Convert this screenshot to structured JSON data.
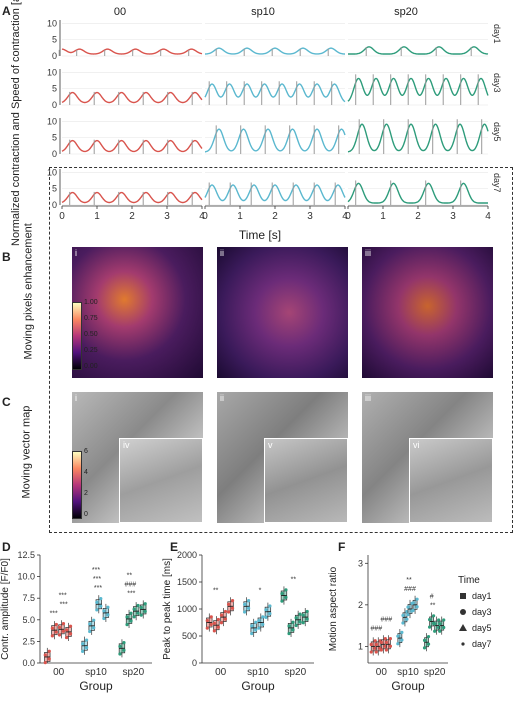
{
  "panel_labels": {
    "A": "A",
    "B": "B",
    "C": "C",
    "D": "D",
    "E": "E",
    "F": "F"
  },
  "groups": [
    "00",
    "sp10",
    "sp20"
  ],
  "days": [
    "day1",
    "day3",
    "day5",
    "day7"
  ],
  "group_colors": {
    "00": "#d9544d",
    "sp10": "#5bb8cf",
    "sp20": "#2e9c7b"
  },
  "panelA": {
    "ylabel": "Normalized contraction and Speed of contraction [a.u.]",
    "xlabel": "Time [s]",
    "x_ticks": [
      "0",
      "1",
      "2",
      "3",
      "4"
    ],
    "y_ticks": [
      "0",
      "5",
      "10"
    ]
  },
  "panelB": {
    "ylabel": "Moving pixels enhancement",
    "roman": [
      "i",
      "ii",
      "iii"
    ],
    "colorbar_ticks": [
      "1.00",
      "0.75",
      "0.50",
      "0.25",
      "0.00"
    ]
  },
  "panelC": {
    "ylabel": "Moving vector map",
    "roman": [
      "i",
      "ii",
      "iii"
    ],
    "inset_roman": [
      "iv",
      "v",
      "vi"
    ],
    "colorbar_ticks": [
      "6",
      "4",
      "2",
      "0"
    ]
  },
  "legend": {
    "title": "Time",
    "items": [
      "day1",
      "day3",
      "day5",
      "day7"
    ]
  },
  "chart_data": [
    {
      "type": "line",
      "title": "",
      "xlabel": "Time [s]",
      "ylabel": "Normalized contraction and Speed of contraction [a.u.]",
      "xlim": [
        0,
        4
      ],
      "ylim": [
        0,
        11
      ],
      "panels": [
        {
          "group": "00",
          "day": "day1",
          "peaks": [
            0.0,
            0.5,
            1.3,
            2.1,
            2.9,
            3.7
          ],
          "amplitude": 1.5
        },
        {
          "group": "sp10",
          "day": "day1",
          "peaks": [
            0.4,
            1.2,
            2.0,
            2.8,
            3.6
          ],
          "amplitude": 1.8
        },
        {
          "group": "sp20",
          "day": "day1",
          "peaks": [
            0.6,
            1.6,
            2.6,
            3.6
          ],
          "amplitude": 2.2
        },
        {
          "group": "00",
          "day": "day3",
          "peaks": [
            0.3,
            1.0,
            1.7,
            2.4,
            3.1,
            3.8
          ],
          "amplitude": 3.2
        },
        {
          "group": "sp10",
          "day": "day3",
          "peaks": [
            0.2,
            0.7,
            1.2,
            1.7,
            2.2,
            2.7,
            3.2,
            3.7
          ],
          "amplitude": 5.8
        },
        {
          "group": "sp20",
          "day": "day3",
          "peaks": [
            0.3,
            0.8,
            1.3,
            1.8,
            2.3,
            2.8,
            3.3,
            3.8
          ],
          "amplitude": 7.5
        },
        {
          "group": "00",
          "day": "day5",
          "peaks": [
            0.3,
            1.0,
            1.7,
            2.4,
            3.1,
            3.8
          ],
          "amplitude": 3.5
        },
        {
          "group": "sp10",
          "day": "day5",
          "peaks": [
            0.4,
            1.1,
            1.8,
            2.5,
            3.2,
            3.9
          ],
          "amplitude": 7.0
        },
        {
          "group": "sp20",
          "day": "day5",
          "peaks": [
            0.4,
            1.1,
            1.8,
            2.5,
            3.2,
            3.9
          ],
          "amplitude": 8.5
        },
        {
          "group": "00",
          "day": "day7",
          "peaks": [
            0.3,
            1.0,
            1.7,
            2.4,
            3.1,
            3.8
          ],
          "amplitude": 3.2
        },
        {
          "group": "sp10",
          "day": "day7",
          "peaks": [
            0.2,
            0.8,
            1.4,
            2.0,
            2.6,
            3.2,
            3.8
          ],
          "amplitude": 5.5
        },
        {
          "group": "sp20",
          "day": "day7",
          "peaks": [
            0.3,
            1.3,
            2.3,
            3.3
          ],
          "amplitude": 6.0
        }
      ]
    },
    {
      "type": "box",
      "title": "",
      "xlabel": "Group",
      "ylabel": "Contr. amplitude [F/F0]",
      "ylim": [
        0,
        12.5
      ],
      "y_ticks": [
        0.0,
        2.5,
        5.0,
        7.5,
        10.0,
        12.5
      ],
      "categories": [
        "00",
        "sp10",
        "sp20"
      ],
      "series": [
        {
          "name": "day1",
          "values": [
            0.7,
            2.0,
            1.7
          ]
        },
        {
          "name": "day3",
          "values": [
            3.8,
            4.3,
            5.1
          ]
        },
        {
          "name": "day5",
          "values": [
            3.9,
            6.8,
            6.0
          ]
        },
        {
          "name": "day7",
          "values": [
            3.6,
            5.8,
            6.2
          ]
        }
      ],
      "annotations": [
        "***",
        "***",
        "***",
        "***",
        "***",
        "###",
        "***",
        "***",
        "**"
      ]
    },
    {
      "type": "box",
      "title": "",
      "xlabel": "Group",
      "ylabel": "Peak to peak time [ms]",
      "ylim": [
        0,
        2000
      ],
      "y_ticks": [
        0,
        500,
        1000,
        1500,
        2000
      ],
      "categories": [
        "00",
        "sp10",
        "sp20"
      ],
      "series": [
        {
          "name": "day1",
          "values": [
            750,
            1050,
            1250
          ]
        },
        {
          "name": "day3",
          "values": [
            700,
            650,
            650
          ]
        },
        {
          "name": "day5",
          "values": [
            850,
            750,
            800
          ]
        },
        {
          "name": "day7",
          "values": [
            1050,
            950,
            850
          ]
        }
      ],
      "annotations": [
        "**",
        "*",
        "**"
      ]
    },
    {
      "type": "box",
      "title": "",
      "xlabel": "Group",
      "ylabel": "Motion aspect ratio",
      "ylim": [
        0.6,
        3.2
      ],
      "y_ticks": [
        1,
        2,
        3
      ],
      "categories": [
        "00",
        "sp10",
        "sp20"
      ],
      "series": [
        {
          "name": "day1",
          "values": [
            1.0,
            1.2,
            1.1
          ]
        },
        {
          "name": "day3",
          "values": [
            1.0,
            1.7,
            1.6
          ]
        },
        {
          "name": "day5",
          "values": [
            1.05,
            1.9,
            1.5
          ]
        },
        {
          "name": "day7",
          "values": [
            1.05,
            2.0,
            1.5
          ]
        }
      ],
      "annotations": [
        "###",
        "###",
        "**",
        "###",
        "**",
        "#"
      ]
    }
  ]
}
